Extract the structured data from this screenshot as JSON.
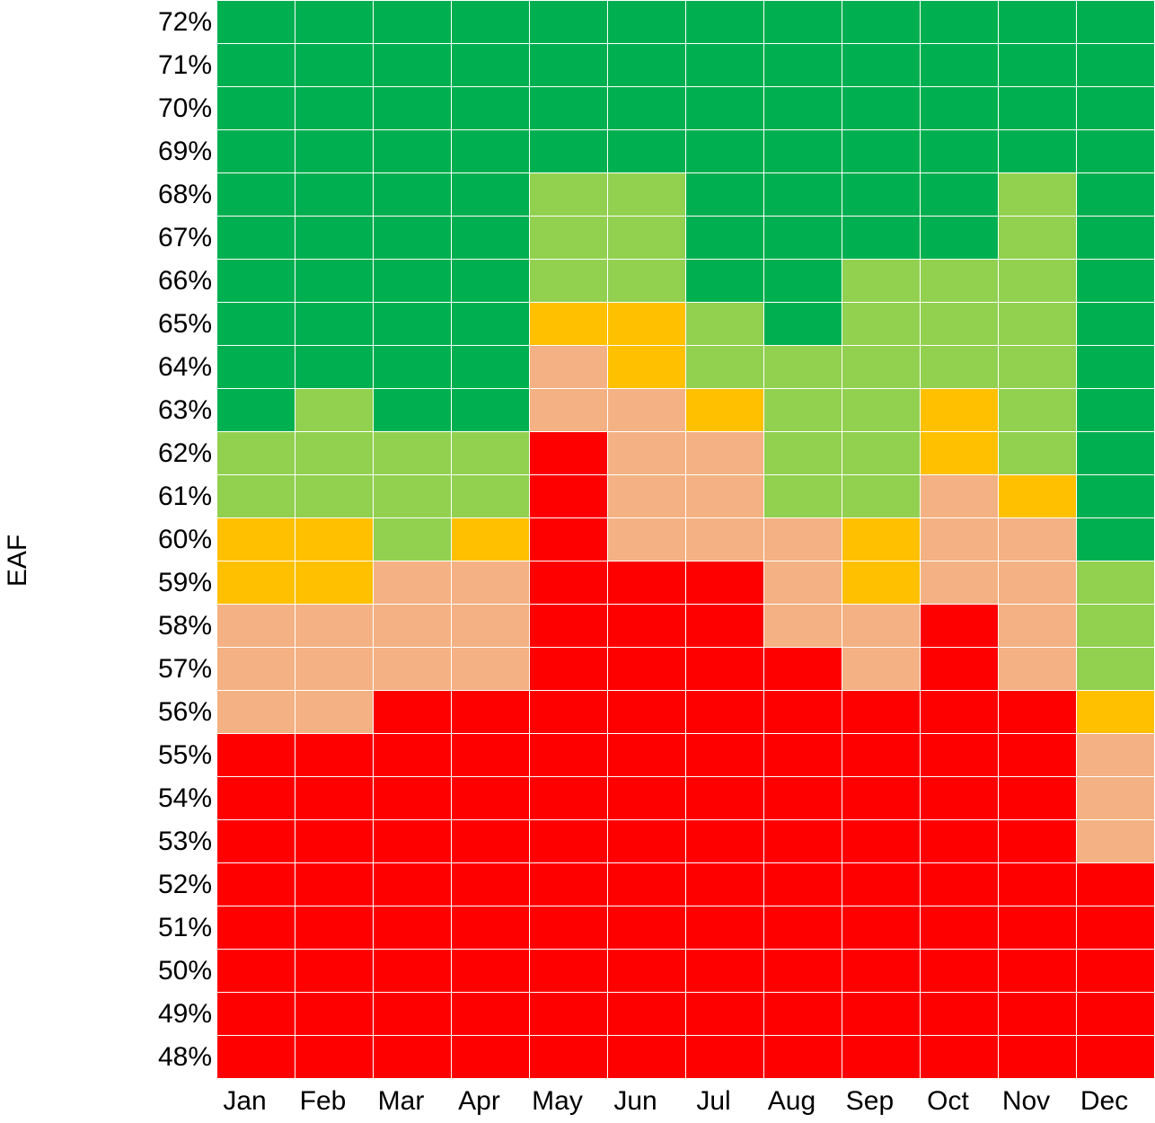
{
  "chart_data": {
    "type": "heatmap",
    "ylabel": "EAF",
    "x": [
      "Jan",
      "Feb",
      "Mar",
      "Apr",
      "May",
      "Jun",
      "Jul",
      "Aug",
      "Sep",
      "Oct",
      "Nov",
      "Dec"
    ],
    "y": [
      "72%",
      "71%",
      "70%",
      "69%",
      "68%",
      "67%",
      "66%",
      "65%",
      "64%",
      "63%",
      "62%",
      "61%",
      "60%",
      "59%",
      "58%",
      "57%",
      "56%",
      "55%",
      "54%",
      "53%",
      "52%",
      "51%",
      "50%",
      "49%",
      "48%"
    ],
    "colors": {
      "1": "#FF0000",
      "2": "#F4B183",
      "3": "#FFC000",
      "4": "#92D050",
      "5": "#00B050"
    },
    "grid": true,
    "values": [
      [
        5,
        5,
        5,
        5,
        5,
        5,
        5,
        5,
        5,
        5,
        5,
        5
      ],
      [
        5,
        5,
        5,
        5,
        5,
        5,
        5,
        5,
        5,
        5,
        5,
        5
      ],
      [
        5,
        5,
        5,
        5,
        5,
        5,
        5,
        5,
        5,
        5,
        5,
        5
      ],
      [
        5,
        5,
        5,
        5,
        5,
        5,
        5,
        5,
        5,
        5,
        5,
        5
      ],
      [
        5,
        5,
        5,
        5,
        4,
        4,
        5,
        5,
        5,
        5,
        4,
        5
      ],
      [
        5,
        5,
        5,
        5,
        4,
        4,
        5,
        5,
        5,
        5,
        4,
        5
      ],
      [
        5,
        5,
        5,
        5,
        4,
        4,
        5,
        5,
        4,
        4,
        4,
        5
      ],
      [
        5,
        5,
        5,
        5,
        3,
        3,
        4,
        5,
        4,
        4,
        4,
        5
      ],
      [
        5,
        5,
        5,
        5,
        2,
        3,
        4,
        4,
        4,
        4,
        4,
        5
      ],
      [
        5,
        4,
        5,
        5,
        2,
        2,
        3,
        4,
        4,
        3,
        4,
        5
      ],
      [
        4,
        4,
        4,
        4,
        1,
        2,
        2,
        4,
        4,
        3,
        4,
        5
      ],
      [
        4,
        4,
        4,
        4,
        1,
        2,
        2,
        4,
        4,
        2,
        3,
        5
      ],
      [
        3,
        3,
        4,
        3,
        1,
        2,
        2,
        2,
        3,
        2,
        2,
        5
      ],
      [
        3,
        3,
        2,
        2,
        1,
        1,
        1,
        2,
        3,
        2,
        2,
        4
      ],
      [
        2,
        2,
        2,
        2,
        1,
        1,
        1,
        2,
        2,
        1,
        2,
        4
      ],
      [
        2,
        2,
        2,
        2,
        1,
        1,
        1,
        1,
        2,
        1,
        2,
        4
      ],
      [
        2,
        2,
        1,
        1,
        1,
        1,
        1,
        1,
        1,
        1,
        1,
        3
      ],
      [
        1,
        1,
        1,
        1,
        1,
        1,
        1,
        1,
        1,
        1,
        1,
        2
      ],
      [
        1,
        1,
        1,
        1,
        1,
        1,
        1,
        1,
        1,
        1,
        1,
        2
      ],
      [
        1,
        1,
        1,
        1,
        1,
        1,
        1,
        1,
        1,
        1,
        1,
        2
      ],
      [
        1,
        1,
        1,
        1,
        1,
        1,
        1,
        1,
        1,
        1,
        1,
        1
      ],
      [
        1,
        1,
        1,
        1,
        1,
        1,
        1,
        1,
        1,
        1,
        1,
        1
      ],
      [
        1,
        1,
        1,
        1,
        1,
        1,
        1,
        1,
        1,
        1,
        1,
        1
      ],
      [
        1,
        1,
        1,
        1,
        1,
        1,
        1,
        1,
        1,
        1,
        1,
        1
      ],
      [
        1,
        1,
        1,
        1,
        1,
        1,
        1,
        1,
        1,
        1,
        1,
        1
      ]
    ]
  }
}
